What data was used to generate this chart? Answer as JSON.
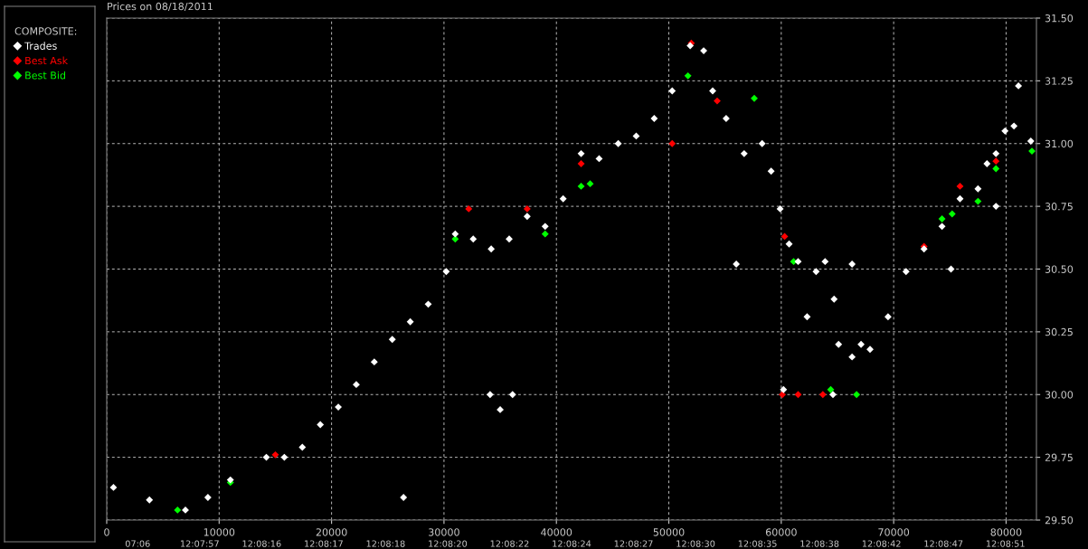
{
  "chart_data": {
    "type": "scatter",
    "title": "Prices on 08/18/2011",
    "legend_title": "COMPOSITE:",
    "legend": "left",
    "grid": true,
    "marker": "diamond",
    "xlim": [
      0,
      82700
    ],
    "xticks": [
      0,
      10000,
      20000,
      30000,
      40000,
      50000,
      60000,
      70000,
      80000
    ],
    "annotations": [
      "07:06",
      "12:07:57",
      "12:08:16",
      "12:08:17",
      "12:08:18",
      "12:08:20",
      "12:08:22",
      "12:08:24",
      "12:08:27",
      "12:08:30",
      "12:08:35",
      "12:08:38",
      "12:08:42",
      "12:08:47",
      "12:08:51"
    ],
    "ylim": [
      29.5,
      31.5
    ],
    "yticks": [
      {
        "value": 29.5,
        "label": "29.50"
      },
      {
        "value": 29.75,
        "label": "29.75"
      },
      {
        "value": 30.0,
        "label": "30.00"
      },
      {
        "value": 30.25,
        "label": "30.25"
      },
      {
        "value": 30.5,
        "label": "30.50"
      },
      {
        "value": 30.75,
        "label": "30.75"
      },
      {
        "value": 31.0,
        "label": "31.00"
      },
      {
        "value": 31.25,
        "label": "31.25"
      },
      {
        "value": 31.5,
        "label": "31.50"
      }
    ],
    "series": [
      {
        "name": "Best Bid",
        "color": "#00ff00",
        "x": [
          6300,
          11000,
          31000,
          39000,
          42200,
          43000,
          51700,
          57600,
          61100,
          64400,
          66700,
          74300,
          75200,
          77500,
          79100,
          82300
        ],
        "values": [
          29.54,
          29.65,
          30.62,
          30.64,
          30.83,
          30.84,
          31.27,
          31.18,
          30.53,
          30.02,
          30.0,
          30.7,
          30.72,
          30.77,
          30.9,
          30.97
        ]
      },
      {
        "name": "Best Ask",
        "color": "#ff0000",
        "x": [
          15000,
          32200,
          37400,
          42200,
          50300,
          52000,
          54300,
          60300,
          60100,
          61500,
          63700,
          72700,
          75900,
          79100
        ],
        "values": [
          29.76,
          30.74,
          30.74,
          30.92,
          31.0,
          31.4,
          31.17,
          30.63,
          30.0,
          30.0,
          30.0,
          30.59,
          30.83,
          30.93
        ]
      },
      {
        "name": "Trades",
        "color": "#ffffff",
        "x": [
          600,
          3800,
          7000,
          9000,
          11000,
          14200,
          15800,
          17400,
          19000,
          20600,
          22200,
          23800,
          25400,
          27000,
          28600,
          30200,
          31000,
          32600,
          34200,
          35800,
          37400,
          39000,
          40600,
          42200,
          43800,
          45500,
          47100,
          48700,
          50300,
          51900,
          53100,
          53900,
          55100,
          56700,
          58300,
          59100,
          59900,
          60700,
          61500,
          62300,
          63100,
          63900,
          64700,
          65100,
          66300,
          67100,
          67900,
          69500,
          71100,
          72700,
          74300,
          75900,
          77500,
          78300,
          79100,
          79900,
          80700,
          82200,
          34100,
          35000,
          36100,
          26400,
          56000,
          66300,
          60200,
          64600,
          81100,
          75100,
          79100
        ],
        "values": [
          29.63,
          29.58,
          29.54,
          29.59,
          29.66,
          29.75,
          29.75,
          29.79,
          29.88,
          29.95,
          30.04,
          30.13,
          30.22,
          30.29,
          30.36,
          30.49,
          30.64,
          30.62,
          30.58,
          30.62,
          30.71,
          30.67,
          30.78,
          30.96,
          30.94,
          31.0,
          31.03,
          31.1,
          31.21,
          31.39,
          31.37,
          31.21,
          31.1,
          30.96,
          31.0,
          30.89,
          30.74,
          30.6,
          30.53,
          30.31,
          30.49,
          30.53,
          30.38,
          30.2,
          30.15,
          30.2,
          30.18,
          30.31,
          30.49,
          30.58,
          30.67,
          30.78,
          30.82,
          30.92,
          30.96,
          31.05,
          31.07,
          31.01,
          30.0,
          29.94,
          30.0,
          29.59,
          30.52,
          30.52,
          30.02,
          30.0,
          31.23,
          30.5,
          30.75
        ]
      }
    ]
  }
}
